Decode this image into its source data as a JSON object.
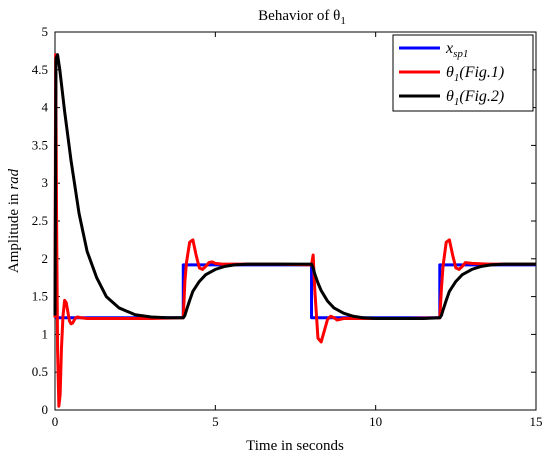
{
  "chart_data": {
    "type": "line",
    "title": "Behavior of θ",
    "title_subscript": "1",
    "xlabel": "Time in seconds",
    "ylabel_prefix": "Amplitude in ",
    "ylabel_unit": "rad",
    "xlim": [
      0,
      15
    ],
    "ylim": [
      0,
      5
    ],
    "xticks": [
      0,
      5,
      10,
      15
    ],
    "yticks": [
      0,
      0.5,
      1,
      1.5,
      2,
      2.5,
      3,
      3.5,
      4,
      4.5,
      5
    ],
    "grid": false,
    "legend_position": "top-right",
    "series": [
      {
        "name": "x",
        "name_subscript": "sp1",
        "color": "#0000ff",
        "x": [
          0,
          4,
          4,
          8,
          8,
          12,
          12,
          15
        ],
        "y": [
          1.22,
          1.22,
          1.92,
          1.92,
          1.22,
          1.22,
          1.92,
          1.92
        ]
      },
      {
        "name": "θ",
        "name_subscript": "1",
        "name_suffix": "(Fig.1)",
        "color": "#ff0000",
        "x": [
          0,
          0.02,
          0.05,
          0.08,
          0.12,
          0.16,
          0.2,
          0.25,
          0.3,
          0.35,
          0.4,
          0.45,
          0.5,
          0.55,
          0.6,
          0.65,
          0.7,
          0.8,
          1.0,
          1.5,
          2.0,
          3.0,
          4.0,
          4.05,
          4.1,
          4.2,
          4.3,
          4.4,
          4.5,
          4.6,
          4.7,
          4.8,
          4.9,
          5.0,
          5.2,
          5.5,
          6.0,
          7.0,
          8.0,
          8.05,
          8.1,
          8.2,
          8.3,
          8.4,
          8.5,
          8.6,
          8.7,
          8.8,
          9.0,
          9.5,
          10.0,
          11.0,
          12.0,
          12.05,
          12.1,
          12.2,
          12.3,
          12.4,
          12.5,
          12.6,
          12.7,
          12.8,
          13.0,
          13.5,
          14.0,
          15.0
        ],
        "y": [
          1.22,
          4.7,
          2.5,
          0.8,
          0.05,
          0.2,
          0.8,
          1.25,
          1.45,
          1.42,
          1.3,
          1.18,
          1.14,
          1.15,
          1.19,
          1.22,
          1.23,
          1.22,
          1.21,
          1.21,
          1.21,
          1.21,
          1.22,
          1.7,
          1.95,
          2.22,
          2.25,
          2.05,
          1.88,
          1.86,
          1.9,
          1.95,
          1.96,
          1.94,
          1.93,
          1.93,
          1.93,
          1.93,
          1.92,
          2.05,
          1.6,
          0.95,
          0.9,
          1.05,
          1.2,
          1.24,
          1.22,
          1.19,
          1.21,
          1.21,
          1.21,
          1.21,
          1.22,
          1.6,
          1.9,
          2.22,
          2.25,
          2.05,
          1.88,
          1.86,
          1.9,
          1.95,
          1.94,
          1.93,
          1.93,
          1.93
        ]
      },
      {
        "name": "θ",
        "name_subscript": "1",
        "name_suffix": "(Fig.2)",
        "color": "#000000",
        "x": [
          0,
          0.03,
          0.08,
          0.15,
          0.3,
          0.5,
          0.75,
          1.0,
          1.3,
          1.6,
          2.0,
          2.5,
          3.0,
          3.5,
          4.0,
          4.05,
          4.1,
          4.2,
          4.3,
          4.5,
          4.7,
          5.0,
          5.3,
          5.6,
          6.0,
          6.5,
          7.0,
          7.5,
          8.0,
          8.05,
          8.1,
          8.2,
          8.3,
          8.5,
          8.7,
          9.0,
          9.3,
          9.6,
          10.0,
          10.5,
          11.0,
          11.5,
          12.0,
          12.05,
          12.1,
          12.2,
          12.3,
          12.5,
          12.7,
          13.0,
          13.3,
          13.6,
          14.0,
          14.5,
          15.0
        ],
        "y": [
          1.25,
          4.65,
          4.7,
          4.5,
          3.95,
          3.3,
          2.6,
          2.1,
          1.75,
          1.5,
          1.35,
          1.26,
          1.23,
          1.22,
          1.22,
          1.25,
          1.32,
          1.45,
          1.57,
          1.7,
          1.79,
          1.86,
          1.9,
          1.92,
          1.93,
          1.93,
          1.93,
          1.93,
          1.93,
          1.88,
          1.8,
          1.68,
          1.58,
          1.44,
          1.35,
          1.28,
          1.24,
          1.22,
          1.21,
          1.21,
          1.21,
          1.21,
          1.22,
          1.25,
          1.32,
          1.45,
          1.57,
          1.7,
          1.79,
          1.86,
          1.9,
          1.92,
          1.93,
          1.93,
          1.93
        ]
      }
    ]
  }
}
